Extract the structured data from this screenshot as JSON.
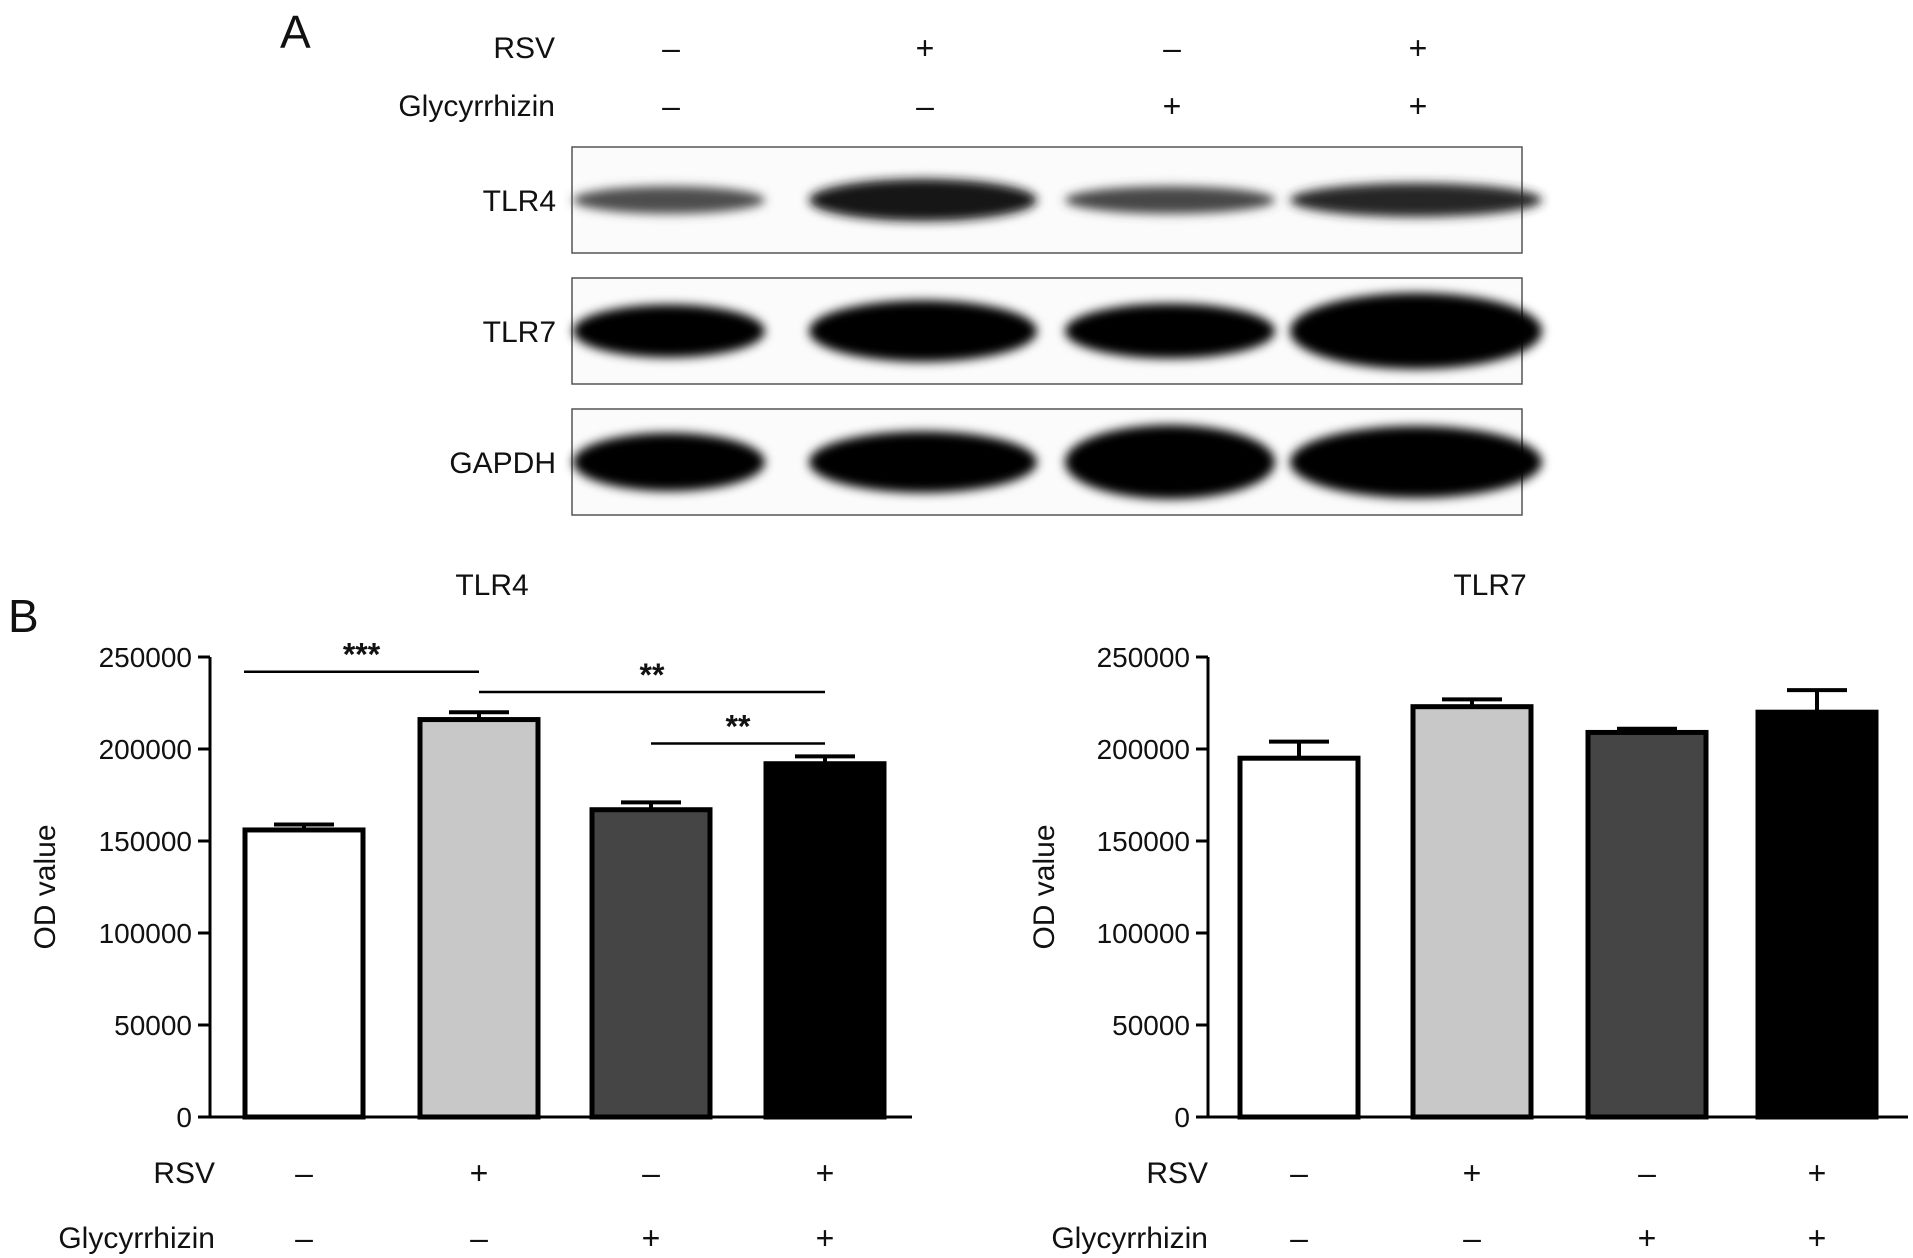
{
  "panel_a": {
    "letter": "A",
    "conditions": [
      {
        "label": "RSV",
        "signs": [
          "–",
          "+",
          "–",
          "+"
        ]
      },
      {
        "label": "Glycyrrhizin",
        "signs": [
          "–",
          "–",
          "+",
          "+"
        ]
      }
    ],
    "blots": [
      {
        "label": "TLR4",
        "intensity": [
          0.7,
          0.92,
          0.72,
          0.85
        ],
        "thickness": [
          0.26,
          0.4,
          0.26,
          0.32
        ]
      },
      {
        "label": "TLR7",
        "intensity": [
          1.0,
          1.0,
          1.0,
          1.0
        ],
        "thickness": [
          0.5,
          0.58,
          0.52,
          0.72
        ]
      },
      {
        "label": "GAPDH",
        "intensity": [
          1.0,
          1.0,
          1.0,
          1.0
        ],
        "thickness": [
          0.55,
          0.58,
          0.7,
          0.68
        ]
      }
    ]
  },
  "panel_b": {
    "letter": "B",
    "bar_colors": [
      "#ffffff",
      "#c8c8c8",
      "#454545",
      "#000000"
    ],
    "conditions": [
      {
        "label": "RSV",
        "signs": [
          "–",
          "+",
          "–",
          "+"
        ]
      },
      {
        "label": "Glycyrrhizin",
        "signs": [
          "–",
          "–",
          "+",
          "+"
        ]
      }
    ]
  },
  "chart_data": [
    {
      "type": "bar",
      "title": "TLR4",
      "ylabel": "OD value",
      "xlabel": "",
      "ylim": [
        0,
        250000
      ],
      "yticks": [
        0,
        50000,
        100000,
        150000,
        200000,
        250000
      ],
      "ytick_labels": [
        "0",
        "50000",
        "100000",
        "150000",
        "200000",
        "250000"
      ],
      "values": [
        156000,
        216000,
        167000,
        192000
      ],
      "errors": [
        3000,
        4000,
        4000,
        4000
      ],
      "significance": [
        {
          "from": 0,
          "to": 1,
          "label": "***",
          "level": 242000
        },
        {
          "from": 1,
          "to": 3,
          "label": "**",
          "level": 231000
        },
        {
          "from": 2,
          "to": 3,
          "label": "**",
          "level": 203000
        }
      ]
    },
    {
      "type": "bar",
      "title": "TLR7",
      "ylabel": "OD value",
      "xlabel": "",
      "ylim": [
        0,
        250000
      ],
      "yticks": [
        0,
        50000,
        100000,
        150000,
        200000,
        250000
      ],
      "ytick_labels": [
        "0",
        "50000",
        "100000",
        "150000",
        "200000",
        "250000"
      ],
      "values": [
        195000,
        223000,
        209000,
        220000
      ],
      "errors": [
        9000,
        4000,
        2000,
        12000
      ],
      "significance": []
    }
  ]
}
